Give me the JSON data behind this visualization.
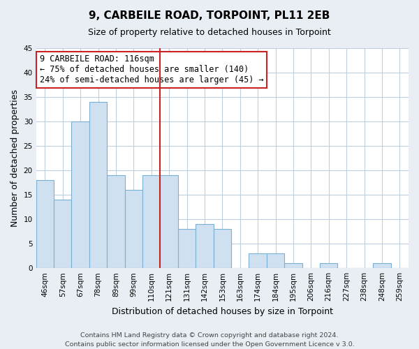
{
  "title": "9, CARBEILE ROAD, TORPOINT, PL11 2EB",
  "subtitle": "Size of property relative to detached houses in Torpoint",
  "xlabel": "Distribution of detached houses by size in Torpoint",
  "ylabel": "Number of detached properties",
  "categories": [
    "46sqm",
    "57sqm",
    "67sqm",
    "78sqm",
    "89sqm",
    "99sqm",
    "110sqm",
    "121sqm",
    "131sqm",
    "142sqm",
    "153sqm",
    "163sqm",
    "174sqm",
    "184sqm",
    "195sqm",
    "206sqm",
    "216sqm",
    "227sqm",
    "238sqm",
    "248sqm",
    "259sqm"
  ],
  "values": [
    18,
    14,
    30,
    34,
    19,
    16,
    19,
    19,
    8,
    9,
    8,
    0,
    3,
    3,
    1,
    0,
    1,
    0,
    0,
    1,
    0
  ],
  "bar_color": "#cfe0f0",
  "bar_edge_color": "#7ab0d4",
  "vline_color": "#cc2222",
  "vline_x": 6.5,
  "ylim": [
    0,
    45
  ],
  "yticks": [
    0,
    5,
    10,
    15,
    20,
    25,
    30,
    35,
    40,
    45
  ],
  "annotation_title": "9 CARBEILE ROAD: 116sqm",
  "annotation_line1": "← 75% of detached houses are smaller (140)",
  "annotation_line2": "24% of semi-detached houses are larger (45) →",
  "footer_line1": "Contains HM Land Registry data © Crown copyright and database right 2024.",
  "footer_line2": "Contains public sector information licensed under the Open Government Licence v 3.0.",
  "background_color": "#e8eef4",
  "plot_bg_color": "#ffffff",
  "grid_color": "#c0cfdf",
  "title_fontsize": 11,
  "subtitle_fontsize": 9,
  "xlabel_fontsize": 9,
  "ylabel_fontsize": 9,
  "tick_fontsize": 7.5,
  "annotation_fontsize": 8.5,
  "footer_fontsize": 6.8
}
